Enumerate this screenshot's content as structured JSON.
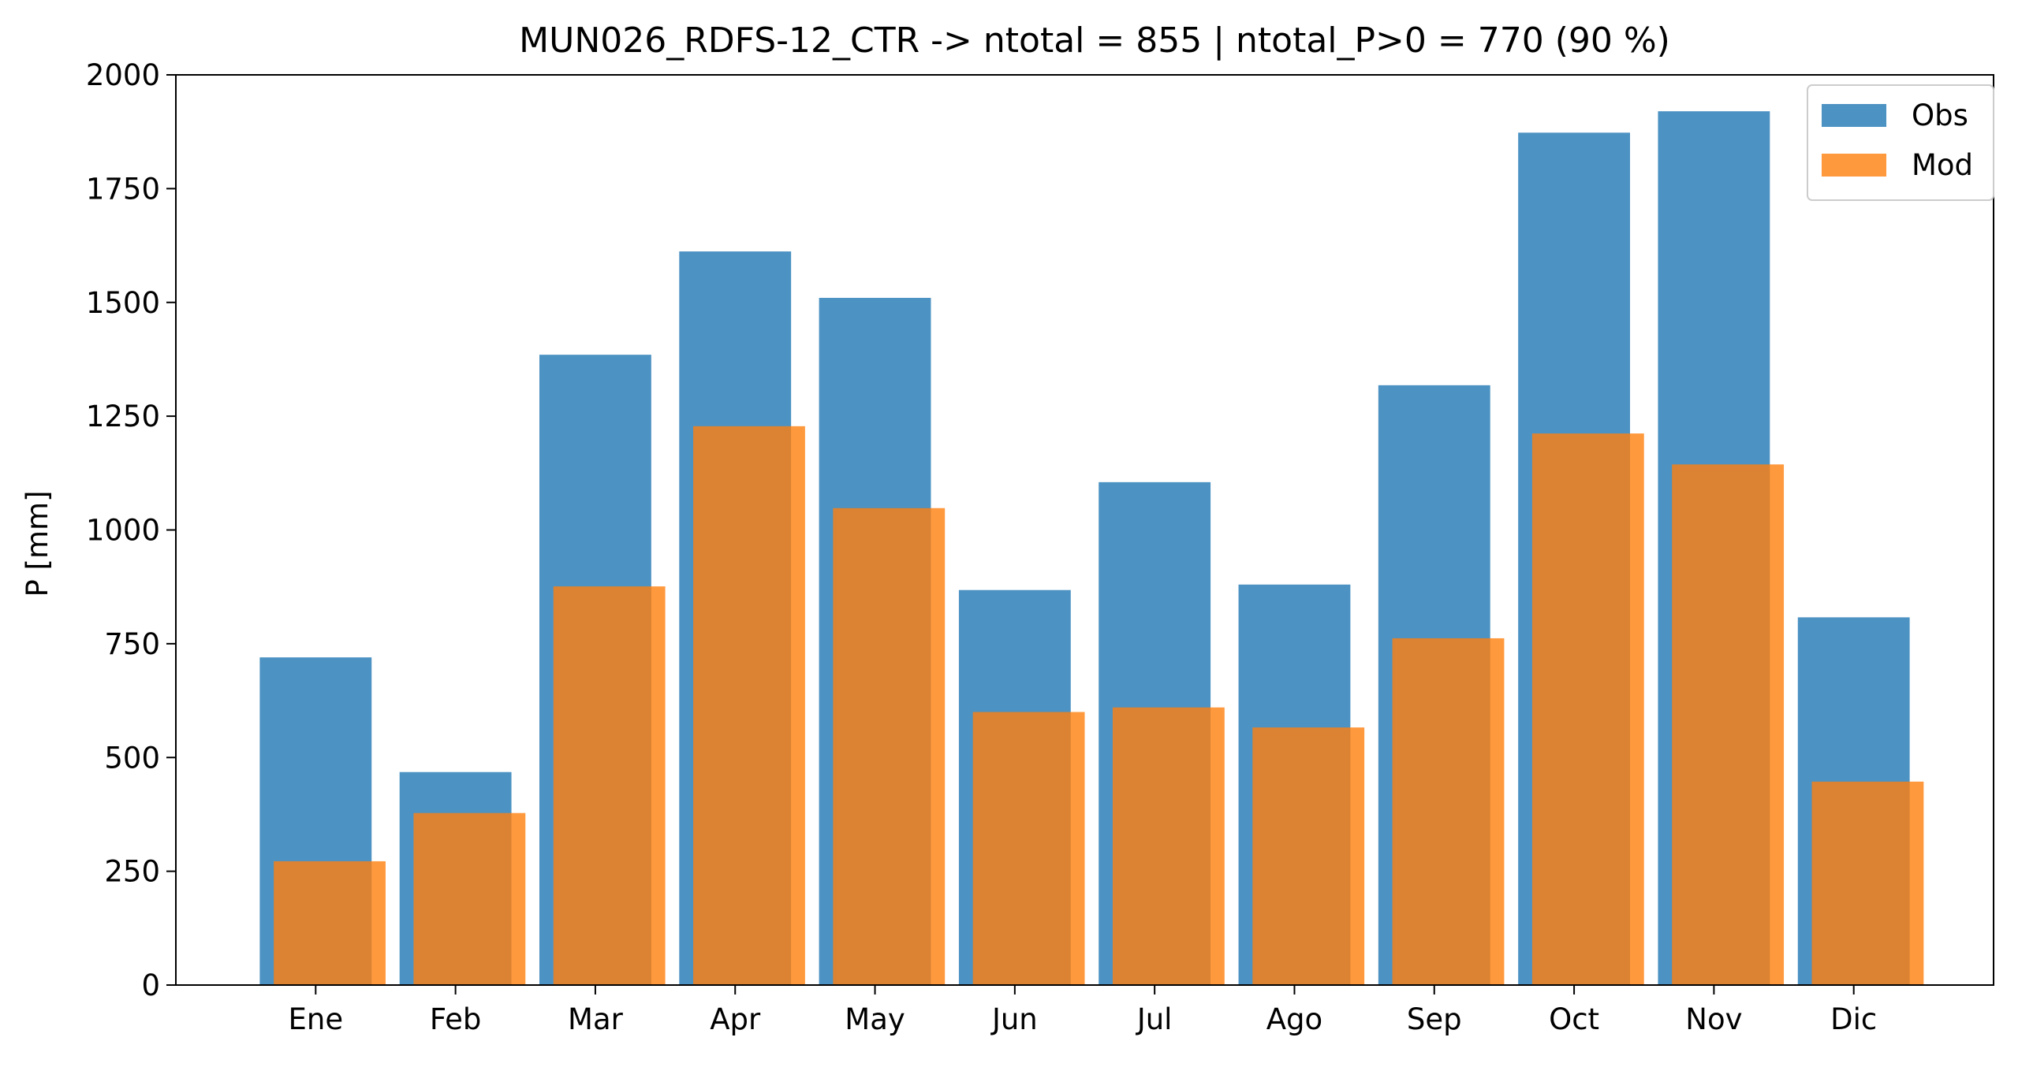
{
  "chart_data": {
    "type": "bar",
    "title": "MUN026_RDFS-12_CTR -> ntotal = 855 | ntotal_P>0 = 770 (90 %)",
    "xlabel": "",
    "ylabel": "P [mm]",
    "categories": [
      "Ene",
      "Feb",
      "Mar",
      "Apr",
      "May",
      "Jun",
      "Jul",
      "Ago",
      "Sep",
      "Oct",
      "Nov",
      "Dic"
    ],
    "series": [
      {
        "name": "Obs",
        "color": "#1f77b4",
        "values": [
          720,
          468,
          1385,
          1612,
          1510,
          868,
          1105,
          880,
          1318,
          1873,
          1920,
          808
        ]
      },
      {
        "name": "Mod",
        "color": "#ff7f0e",
        "values": [
          272,
          378,
          876,
          1228,
          1048,
          600,
          610,
          566,
          762,
          1212,
          1144,
          447
        ]
      }
    ],
    "ylim": [
      0,
      2000
    ],
    "yticks": [
      0,
      250,
      500,
      750,
      1000,
      1250,
      1500,
      1750,
      2000
    ],
    "ytick_labels": [
      "0",
      "250",
      "500",
      "750",
      "1000",
      "1250",
      "1500",
      "1750",
      "2000"
    ],
    "legend_position": "top-right",
    "grid": false,
    "bar_alpha": 0.8
  }
}
